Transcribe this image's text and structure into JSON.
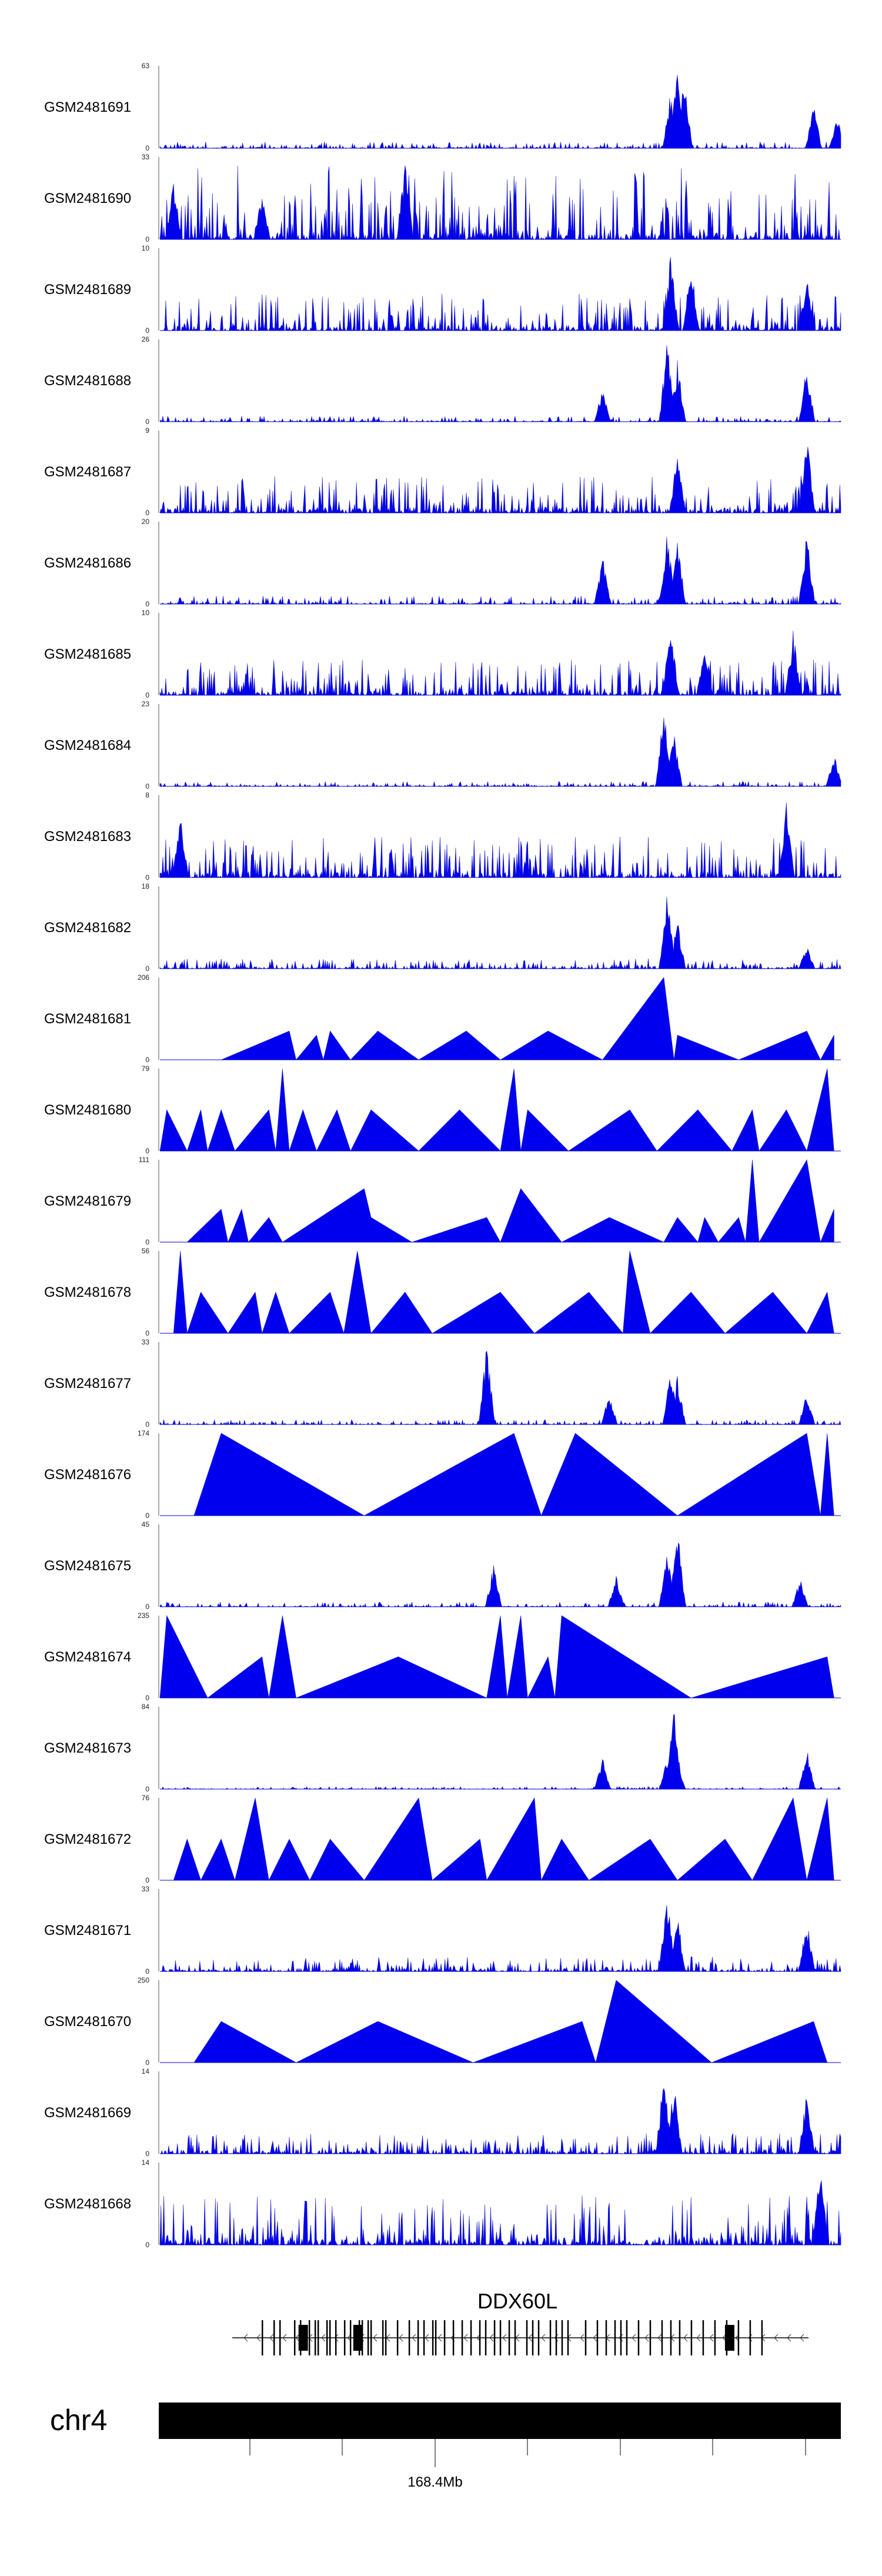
{
  "chart_data": {
    "type": "area",
    "title": "",
    "xlabel": "",
    "ylabel": "",
    "x_range_mb": [
      168.3,
      168.48
    ],
    "series": [
      {
        "name": "GSM2481691",
        "ymax": 63,
        "ymin": 0,
        "style": "dense",
        "peaks": [
          [
            0.75,
            0.7
          ],
          [
            0.76,
            1.0
          ],
          [
            0.77,
            0.95
          ],
          [
            0.96,
            0.55
          ],
          [
            0.995,
            0.4
          ]
        ],
        "noise": 0.08
      },
      {
        "name": "GSM2481690",
        "ymax": 33,
        "ymin": 0,
        "style": "spiky",
        "peaks": [
          [
            0.36,
            1.0
          ],
          [
            0.02,
            0.75
          ],
          [
            0.15,
            0.6
          ]
        ],
        "noise": 0.55
      },
      {
        "name": "GSM2481689",
        "ymax": 10,
        "ymin": 0,
        "style": "dense",
        "peaks": [
          [
            0.75,
            0.95
          ],
          [
            0.78,
            0.85
          ],
          [
            0.95,
            0.7
          ]
        ],
        "noise": 0.45
      },
      {
        "name": "GSM2481688",
        "ymax": 26,
        "ymin": 0,
        "style": "dense",
        "peaks": [
          [
            0.65,
            0.45
          ],
          [
            0.745,
            1.0
          ],
          [
            0.76,
            0.75
          ],
          [
            0.95,
            0.7
          ]
        ],
        "noise": 0.07
      },
      {
        "name": "GSM2481687",
        "ymax": 9,
        "ymin": 0,
        "style": "dense",
        "peaks": [
          [
            0.76,
            0.8
          ],
          [
            0.95,
            1.0
          ]
        ],
        "noise": 0.45
      },
      {
        "name": "GSM2481686",
        "ymax": 20,
        "ymin": 0,
        "style": "dense",
        "peaks": [
          [
            0.65,
            0.6
          ],
          [
            0.745,
            0.95
          ],
          [
            0.76,
            0.8
          ],
          [
            0.95,
            0.9
          ]
        ],
        "noise": 0.1
      },
      {
        "name": "GSM2481685",
        "ymax": 10,
        "ymin": 0,
        "style": "dense",
        "peaks": [
          [
            0.75,
            0.95
          ],
          [
            0.8,
            0.7
          ],
          [
            0.93,
            0.8
          ]
        ],
        "noise": 0.45
      },
      {
        "name": "GSM2481684",
        "ymax": 23,
        "ymin": 0,
        "style": "dense",
        "peaks": [
          [
            0.74,
            1.0
          ],
          [
            0.755,
            0.7
          ],
          [
            0.99,
            0.4
          ]
        ],
        "noise": 0.06
      },
      {
        "name": "GSM2481683",
        "ymax": 8,
        "ymin": 0,
        "style": "dense",
        "peaks": [
          [
            0.92,
            1.0
          ],
          [
            0.03,
            0.8
          ]
        ],
        "noise": 0.5
      },
      {
        "name": "GSM2481682",
        "ymax": 18,
        "ymin": 0,
        "style": "dense",
        "peaks": [
          [
            0.745,
            1.0
          ],
          [
            0.76,
            0.6
          ],
          [
            0.95,
            0.3
          ]
        ],
        "noise": 0.12
      },
      {
        "name": "GSM2481681",
        "ymax": 206,
        "ymin": 0,
        "style": "sparse",
        "peaks": [
          [
            0.09,
            0
          ],
          [
            0.19,
            0.35
          ],
          [
            0.2,
            0
          ],
          [
            0.23,
            0.3
          ],
          [
            0.24,
            0
          ],
          [
            0.25,
            0.35
          ],
          [
            0.28,
            0
          ],
          [
            0.32,
            0.35
          ],
          [
            0.38,
            0
          ],
          [
            0.45,
            0.35
          ],
          [
            0.5,
            0
          ],
          [
            0.57,
            0.35
          ],
          [
            0.65,
            0
          ],
          [
            0.74,
            1.0
          ],
          [
            0.755,
            0
          ],
          [
            0.76,
            0.3
          ],
          [
            0.85,
            0
          ],
          [
            0.95,
            0.35
          ],
          [
            0.97,
            0
          ],
          [
            0.99,
            0.3
          ]
        ]
      },
      {
        "name": "GSM2481680",
        "ymax": 79,
        "ymin": 0,
        "style": "sparse",
        "peaks": [
          [
            0.0,
            0
          ],
          [
            0.01,
            0.5
          ],
          [
            0.04,
            0
          ],
          [
            0.06,
            0.5
          ],
          [
            0.07,
            0
          ],
          [
            0.09,
            0.5
          ],
          [
            0.11,
            0
          ],
          [
            0.16,
            0.5
          ],
          [
            0.17,
            0
          ],
          [
            0.18,
            1.0
          ],
          [
            0.19,
            0
          ],
          [
            0.21,
            0.5
          ],
          [
            0.23,
            0
          ],
          [
            0.26,
            0.5
          ],
          [
            0.28,
            0
          ],
          [
            0.31,
            0.5
          ],
          [
            0.38,
            0
          ],
          [
            0.44,
            0.5
          ],
          [
            0.5,
            0
          ],
          [
            0.52,
            1.0
          ],
          [
            0.53,
            0
          ],
          [
            0.54,
            0.5
          ],
          [
            0.6,
            0
          ],
          [
            0.69,
            0.5
          ],
          [
            0.73,
            0
          ],
          [
            0.79,
            0.5
          ],
          [
            0.84,
            0
          ],
          [
            0.87,
            0.5
          ],
          [
            0.88,
            0
          ],
          [
            0.92,
            0.5
          ],
          [
            0.95,
            0
          ],
          [
            0.98,
            1.0
          ],
          [
            0.99,
            0
          ]
        ]
      },
      {
        "name": "GSM2481679",
        "ymax": 111,
        "ymin": 0,
        "style": "sparse",
        "peaks": [
          [
            0.04,
            0
          ],
          [
            0.09,
            0.4
          ],
          [
            0.1,
            0
          ],
          [
            0.12,
            0.4
          ],
          [
            0.13,
            0
          ],
          [
            0.16,
            0.3
          ],
          [
            0.18,
            0
          ],
          [
            0.3,
            0.65
          ],
          [
            0.31,
            0.3
          ],
          [
            0.37,
            0
          ],
          [
            0.48,
            0.3
          ],
          [
            0.5,
            0
          ],
          [
            0.53,
            0.65
          ],
          [
            0.59,
            0
          ],
          [
            0.66,
            0.3
          ],
          [
            0.74,
            0
          ],
          [
            0.76,
            0.3
          ],
          [
            0.79,
            0
          ],
          [
            0.8,
            0.3
          ],
          [
            0.82,
            0
          ],
          [
            0.85,
            0.3
          ],
          [
            0.86,
            0
          ],
          [
            0.87,
            1.0
          ],
          [
            0.88,
            0
          ],
          [
            0.95,
            1.0
          ],
          [
            0.97,
            0
          ],
          [
            0.99,
            0.4
          ]
        ]
      },
      {
        "name": "GSM2481678",
        "ymax": 56,
        "ymin": 0,
        "style": "sparse",
        "peaks": [
          [
            0.02,
            0
          ],
          [
            0.03,
            1.0
          ],
          [
            0.04,
            0
          ],
          [
            0.06,
            0.5
          ],
          [
            0.1,
            0
          ],
          [
            0.14,
            0.5
          ],
          [
            0.15,
            0
          ],
          [
            0.17,
            0.5
          ],
          [
            0.19,
            0
          ],
          [
            0.25,
            0.5
          ],
          [
            0.27,
            0
          ],
          [
            0.29,
            1.0
          ],
          [
            0.31,
            0
          ],
          [
            0.36,
            0.5
          ],
          [
            0.4,
            0
          ],
          [
            0.5,
            0.5
          ],
          [
            0.55,
            0
          ],
          [
            0.63,
            0.5
          ],
          [
            0.68,
            0
          ],
          [
            0.69,
            1.0
          ],
          [
            0.72,
            0
          ],
          [
            0.78,
            0.5
          ],
          [
            0.83,
            0
          ],
          [
            0.9,
            0.5
          ],
          [
            0.95,
            0
          ],
          [
            0.98,
            0.5
          ],
          [
            0.99,
            0
          ]
        ]
      },
      {
        "name": "GSM2481677",
        "ymax": 33,
        "ymin": 0,
        "style": "dense",
        "peaks": [
          [
            0.48,
            1.0
          ],
          [
            0.66,
            0.4
          ],
          [
            0.75,
            0.65
          ],
          [
            0.76,
            0.6
          ],
          [
            0.95,
            0.4
          ]
        ],
        "noise": 0.06
      },
      {
        "name": "GSM2481676",
        "ymax": 174,
        "ymin": 0,
        "style": "sparse",
        "peaks": [
          [
            0.05,
            0
          ],
          [
            0.09,
            1.0
          ],
          [
            0.3,
            0
          ],
          [
            0.52,
            1.0
          ],
          [
            0.56,
            0
          ],
          [
            0.61,
            1.0
          ],
          [
            0.76,
            0
          ],
          [
            0.95,
            1.0
          ],
          [
            0.97,
            0
          ],
          [
            0.98,
            1.0
          ],
          [
            0.99,
            0
          ]
        ]
      },
      {
        "name": "GSM2481675",
        "ymax": 45,
        "ymin": 0,
        "style": "dense",
        "peaks": [
          [
            0.49,
            0.55
          ],
          [
            0.67,
            0.4
          ],
          [
            0.745,
            0.75
          ],
          [
            0.76,
            1.0
          ],
          [
            0.94,
            0.35
          ]
        ],
        "noise": 0.06
      },
      {
        "name": "GSM2481674",
        "ymax": 235,
        "ymin": 0,
        "style": "sparse",
        "peaks": [
          [
            0.0,
            0
          ],
          [
            0.01,
            1.0
          ],
          [
            0.07,
            0
          ],
          [
            0.15,
            0.5
          ],
          [
            0.16,
            0
          ],
          [
            0.18,
            1.0
          ],
          [
            0.2,
            0
          ],
          [
            0.35,
            0.5
          ],
          [
            0.48,
            0
          ],
          [
            0.5,
            1.0
          ],
          [
            0.51,
            0
          ],
          [
            0.53,
            1.0
          ],
          [
            0.54,
            0
          ],
          [
            0.57,
            0.5
          ],
          [
            0.58,
            0
          ],
          [
            0.59,
            1.0
          ],
          [
            0.78,
            0
          ],
          [
            0.98,
            0.5
          ],
          [
            0.99,
            0
          ]
        ]
      },
      {
        "name": "GSM2481673",
        "ymax": 84,
        "ymin": 0,
        "style": "dense",
        "peaks": [
          [
            0.65,
            0.4
          ],
          [
            0.745,
            0.4
          ],
          [
            0.755,
            1.0
          ],
          [
            0.76,
            0.3
          ],
          [
            0.95,
            0.5
          ]
        ],
        "noise": 0.03
      },
      {
        "name": "GSM2481672",
        "ymax": 76,
        "ymin": 0,
        "style": "sparse",
        "peaks": [
          [
            0.02,
            0
          ],
          [
            0.04,
            0.5
          ],
          [
            0.06,
            0
          ],
          [
            0.09,
            0.5
          ],
          [
            0.11,
            0
          ],
          [
            0.14,
            1.0
          ],
          [
            0.16,
            0
          ],
          [
            0.19,
            0.5
          ],
          [
            0.22,
            0
          ],
          [
            0.25,
            0.5
          ],
          [
            0.3,
            0
          ],
          [
            0.38,
            1.0
          ],
          [
            0.4,
            0
          ],
          [
            0.47,
            0.5
          ],
          [
            0.48,
            0
          ],
          [
            0.55,
            1.0
          ],
          [
            0.56,
            0
          ],
          [
            0.59,
            0.5
          ],
          [
            0.63,
            0
          ],
          [
            0.72,
            0.5
          ],
          [
            0.76,
            0
          ],
          [
            0.83,
            0.5
          ],
          [
            0.87,
            0
          ],
          [
            0.93,
            1.0
          ],
          [
            0.95,
            0
          ],
          [
            0.98,
            1.0
          ],
          [
            0.99,
            0
          ]
        ]
      },
      {
        "name": "GSM2481671",
        "ymax": 33,
        "ymin": 0,
        "style": "dense",
        "peaks": [
          [
            0.745,
            1.0
          ],
          [
            0.76,
            0.7
          ],
          [
            0.95,
            0.65
          ]
        ],
        "noise": 0.18
      },
      {
        "name": "GSM2481670",
        "ymax": 250,
        "ymin": 0,
        "style": "sparse",
        "peaks": [
          [
            0.05,
            0
          ],
          [
            0.09,
            0.5
          ],
          [
            0.2,
            0
          ],
          [
            0.32,
            0.5
          ],
          [
            0.46,
            0
          ],
          [
            0.62,
            0.5
          ],
          [
            0.64,
            0
          ],
          [
            0.67,
            1.0
          ],
          [
            0.81,
            0
          ],
          [
            0.96,
            0.5
          ],
          [
            0.98,
            0
          ]
        ]
      },
      {
        "name": "GSM2481669",
        "ymax": 14,
        "ymin": 0,
        "style": "dense",
        "peaks": [
          [
            0.74,
            1.0
          ],
          [
            0.755,
            0.9
          ],
          [
            0.95,
            0.8
          ]
        ],
        "noise": 0.25
      },
      {
        "name": "GSM2481668",
        "ymax": 14,
        "ymin": 0,
        "style": "dense",
        "peaks": [
          [
            0.97,
            1.0
          ]
        ],
        "noise": 0.6
      }
    ],
    "gene": {
      "name": "DDX60L",
      "strand": "-",
      "exons": [
        0.05,
        0.07,
        0.08,
        0.105,
        0.115,
        0.13,
        0.14,
        0.145,
        0.16,
        0.165,
        0.175,
        0.19,
        0.2,
        0.215,
        0.22,
        0.23,
        0.235,
        0.255,
        0.26,
        0.28,
        0.3,
        0.315,
        0.325,
        0.34,
        0.345,
        0.36,
        0.375,
        0.39,
        0.405,
        0.42,
        0.43,
        0.445,
        0.455,
        0.47,
        0.48,
        0.5,
        0.51,
        0.52,
        0.54,
        0.55,
        0.56,
        0.57,
        0.6,
        0.62,
        0.635,
        0.65,
        0.66,
        0.67,
        0.69,
        0.71,
        0.73,
        0.745,
        0.76,
        0.78,
        0.8,
        0.82,
        0.84,
        0.86,
        0.88,
        0.9
      ],
      "thick_exons": [
        0.115,
        0.21,
        0.855
      ]
    },
    "chromosome": "chr4",
    "x_tick_labels": [
      "168.4Mb"
    ]
  }
}
